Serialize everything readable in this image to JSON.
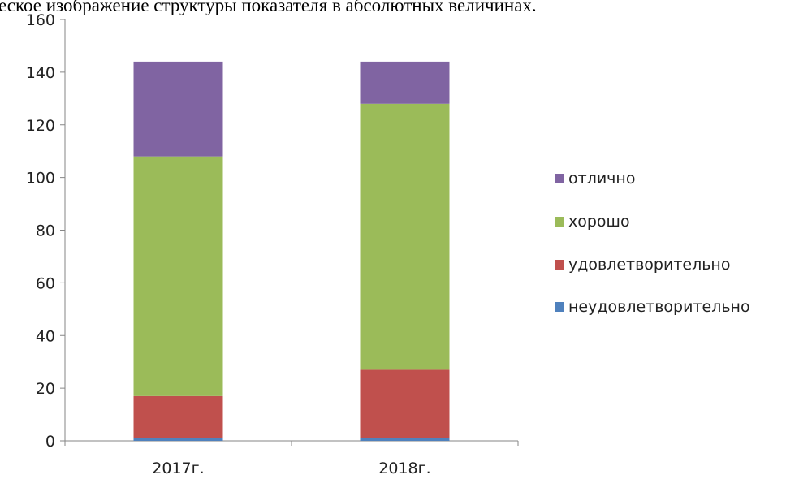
{
  "chart_data": {
    "type": "stacked_bar",
    "title": "еское изображение структуры показателя в абсолютных величинах.",
    "categories": [
      "2017г.",
      "2018г."
    ],
    "series": [
      {
        "name": "неудовлетворительно",
        "color": "#4f81bd",
        "values": [
          1,
          1
        ]
      },
      {
        "name": "удовлетворительно",
        "color": "#c0504d",
        "values": [
          16,
          26
        ]
      },
      {
        "name": "хорошо",
        "color": "#9bbb59",
        "values": [
          91,
          101
        ]
      },
      {
        "name": "отлично",
        "color": "#8064a2",
        "values": [
          36,
          16
        ]
      }
    ],
    "ylim": [
      0,
      160
    ],
    "yticks": [
      0,
      20,
      40,
      60,
      80,
      100,
      120,
      140,
      160
    ],
    "grid": false,
    "legend": "right"
  }
}
